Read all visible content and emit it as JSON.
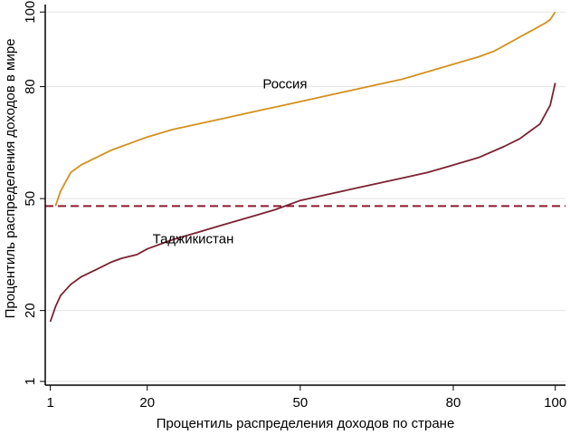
{
  "chart_data": {
    "type": "line",
    "title": "",
    "xlabel": "Процентиль распределения доходов по стране",
    "ylabel": "Процентиль распределения доходов в мире",
    "xlim": [
      0,
      102
    ],
    "ylim": [
      0,
      102
    ],
    "x_ticks": [
      1,
      20,
      50,
      80,
      100
    ],
    "y_ticks": [
      1,
      20,
      50,
      80,
      100
    ],
    "grid": "horizontal",
    "legend": "none",
    "reference_line": {
      "y": 48,
      "style": "dashed",
      "color": "#8b1a2b"
    },
    "series": [
      {
        "name": "Россия",
        "color": "#d4901e",
        "x": [
          2,
          3,
          5,
          7,
          10,
          13,
          15,
          18,
          20,
          25,
          30,
          35,
          40,
          45,
          50,
          55,
          60,
          65,
          70,
          75,
          80,
          85,
          88,
          90,
          92,
          94,
          96,
          98,
          99,
          100
        ],
        "y": [
          48,
          52,
          57,
          59,
          61,
          63,
          64,
          65.5,
          66.5,
          68.5,
          70,
          71.5,
          73,
          74.5,
          76,
          77.5,
          79,
          80.5,
          82,
          84,
          86,
          88,
          89.5,
          91,
          92.5,
          94,
          95.5,
          97,
          98,
          100
        ]
      },
      {
        "name": "Таджикистан",
        "color": "#7b2231",
        "x": [
          1,
          2,
          3,
          5,
          7,
          10,
          13,
          15,
          18,
          20,
          25,
          30,
          35,
          40,
          45,
          50,
          55,
          60,
          65,
          70,
          75,
          80,
          85,
          90,
          93,
          95,
          97,
          99,
          100
        ],
        "y": [
          17,
          21,
          24,
          27,
          29,
          31,
          33,
          34,
          35,
          36.5,
          39,
          41,
          43,
          45,
          47,
          49.5,
          51,
          52.5,
          54,
          55.5,
          57,
          59,
          61,
          64,
          66,
          68,
          70,
          75,
          81
        ]
      }
    ],
    "annotations": [
      {
        "text": "Россия",
        "x": 47,
        "y": 79.5
      },
      {
        "text": "Таджикистан",
        "x": 29,
        "y": 38
      }
    ]
  }
}
